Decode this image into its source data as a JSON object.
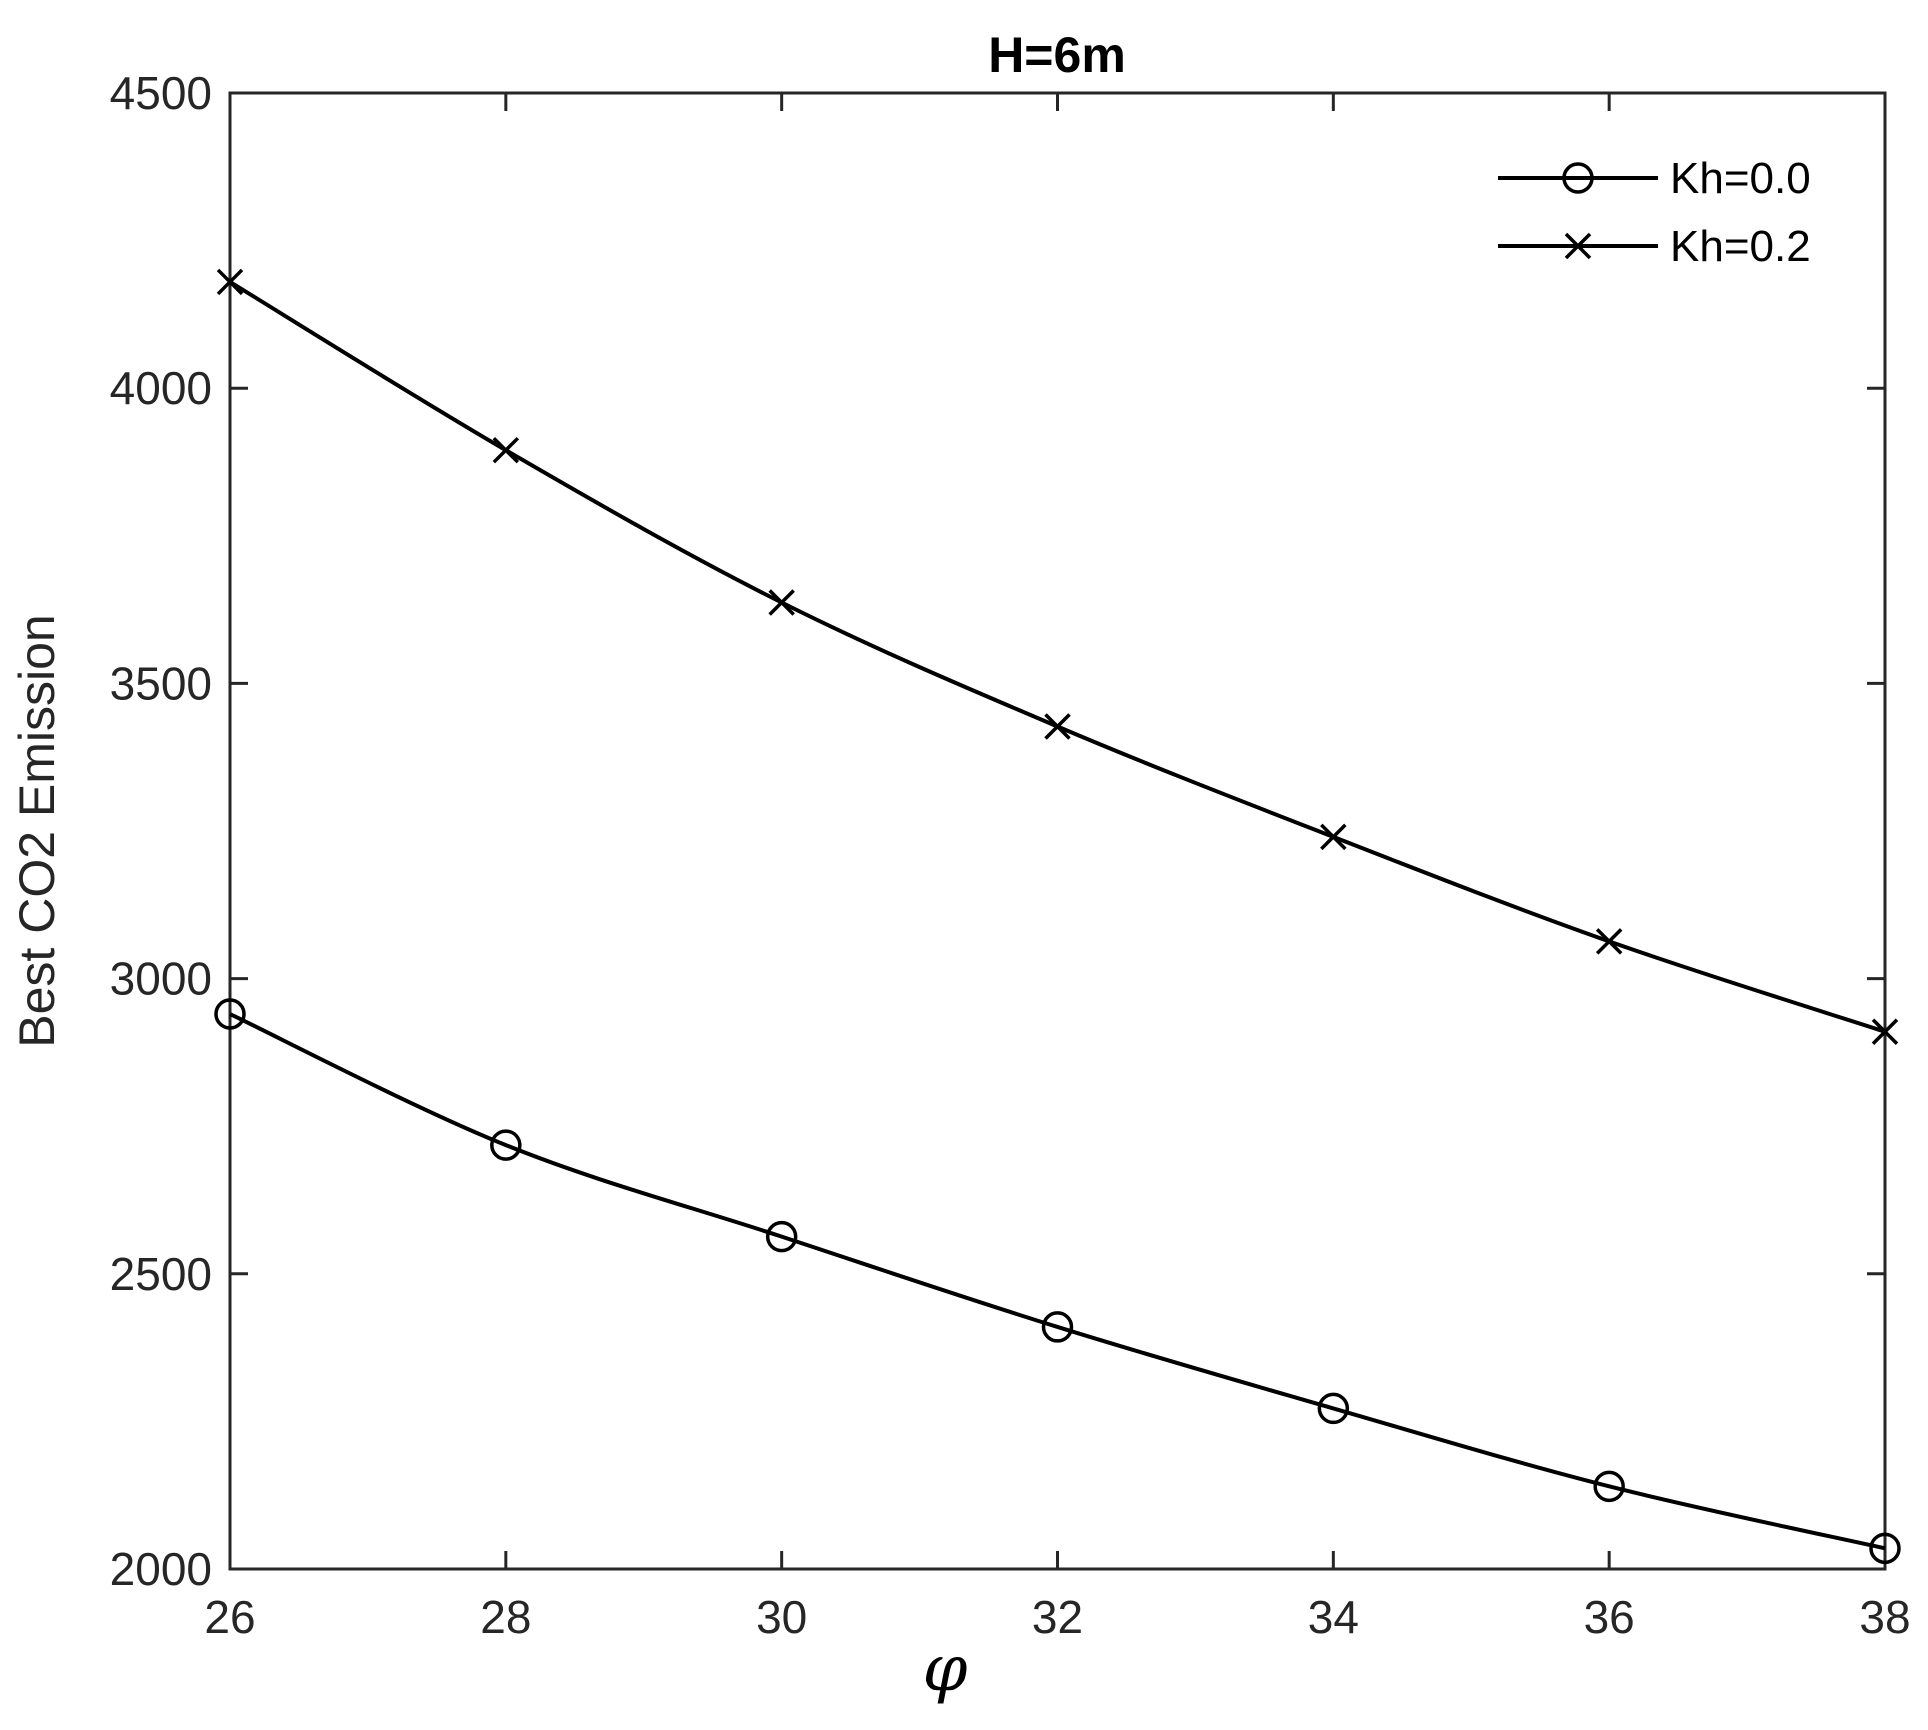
{
  "chart_data": {
    "type": "line",
    "title": "H=6m",
    "xlabel": "φ",
    "ylabel": "Best CO2 Emission",
    "x": [
      26,
      28,
      30,
      32,
      34,
      36,
      38
    ],
    "xlim": [
      26,
      38
    ],
    "ylim": [
      2000,
      4500
    ],
    "xticks": [
      "26",
      "28",
      "30",
      "32",
      "34",
      "36",
      "38"
    ],
    "yticks": [
      "2000",
      "2500",
      "3000",
      "3500",
      "4000",
      "4500"
    ],
    "grid": false,
    "legend_position": "top-right",
    "series": [
      {
        "name": "Kh=0.0",
        "marker": "circle",
        "color": "#000000",
        "values": [
          2940,
          2718,
          2563,
          2410,
          2272,
          2140,
          2035
        ]
      },
      {
        "name": "Kh=0.2",
        "marker": "x",
        "color": "#000000",
        "values": [
          4180,
          3895,
          3637,
          3427,
          3240,
          3063,
          2910
        ]
      }
    ]
  }
}
